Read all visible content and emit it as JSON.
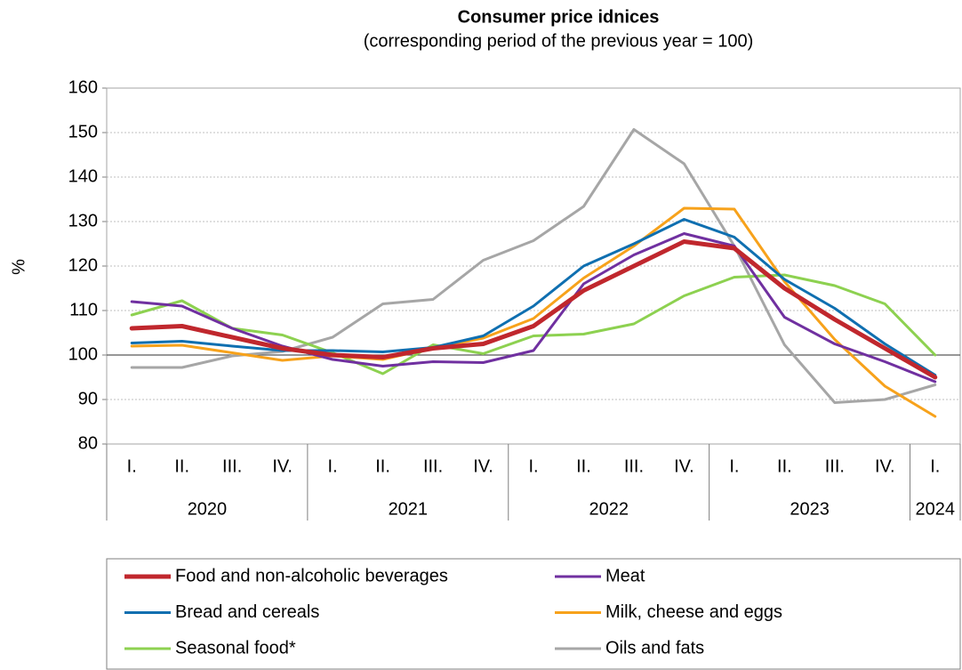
{
  "chart_data": {
    "type": "line",
    "title": "Consumer price idnices",
    "subtitle": "(corresponding period of the previous year = 100)",
    "y_label": "%",
    "categories": [
      "I.",
      "II.",
      "III.",
      "IV.",
      "I.",
      "II.",
      "III.",
      "IV.",
      "I.",
      "II.",
      "III.",
      "IV.",
      "I.",
      "II.",
      "III.",
      "IV.",
      "I."
    ],
    "category_groups": [
      {
        "label": "2020",
        "span": 4
      },
      {
        "label": "2021",
        "span": 4
      },
      {
        "label": "2022",
        "span": 4
      },
      {
        "label": "2023",
        "span": 4
      },
      {
        "label": "2024",
        "span": 1
      }
    ],
    "ylim": [
      80,
      160
    ],
    "yticks": [
      80,
      90,
      100,
      110,
      120,
      130,
      140,
      150,
      160
    ],
    "grid": true,
    "baseline": 100,
    "series": [
      {
        "name": "Food and non-alcoholic beverages",
        "color": "#c0272d",
        "width": 5,
        "values": [
          106,
          106.5,
          104,
          101.5,
          100,
          99.5,
          101.5,
          102.5,
          106.5,
          114.5,
          120,
          125.5,
          124,
          115,
          108,
          101.5,
          95
        ]
      },
      {
        "name": "Meat",
        "color": "#7030a0",
        "width": 3,
        "values": [
          112,
          111,
          106,
          102,
          99,
          97.5,
          98.5,
          98.3,
          101,
          116,
          122.5,
          127.3,
          124.5,
          108.5,
          102.5,
          98.5,
          94
        ]
      },
      {
        "name": "Bread and cereals",
        "color": "#0f6fb0",
        "width": 3,
        "values": [
          102.7,
          103.1,
          102,
          101,
          101,
          100.7,
          101.7,
          104.3,
          111,
          120,
          125,
          130.5,
          126.5,
          117,
          110.5,
          102.5,
          95.5
        ]
      },
      {
        "name": "Milk, cheese and eggs",
        "color": "#f7a21b",
        "width": 3,
        "values": [
          102,
          102.2,
          100.5,
          98.8,
          99.8,
          99,
          101.6,
          103.8,
          108.2,
          117.3,
          124.5,
          133,
          132.8,
          116.5,
          103.5,
          93,
          86.2
        ]
      },
      {
        "name": "Seasonal food*",
        "color": "#8dd150",
        "width": 3,
        "values": [
          109,
          112.2,
          106,
          104.5,
          100.5,
          95.8,
          102.3,
          100.3,
          104.3,
          104.7,
          107,
          113.3,
          117.5,
          118,
          115.6,
          111.5,
          100
        ]
      },
      {
        "name": "Oils and fats",
        "color": "#a6a6a6",
        "width": 3,
        "values": [
          97.2,
          97.2,
          99.8,
          100.8,
          104,
          111.5,
          112.5,
          121.3,
          125.7,
          133.4,
          150.7,
          143,
          124.5,
          102.3,
          89.3,
          90,
          93.3
        ]
      }
    ]
  }
}
